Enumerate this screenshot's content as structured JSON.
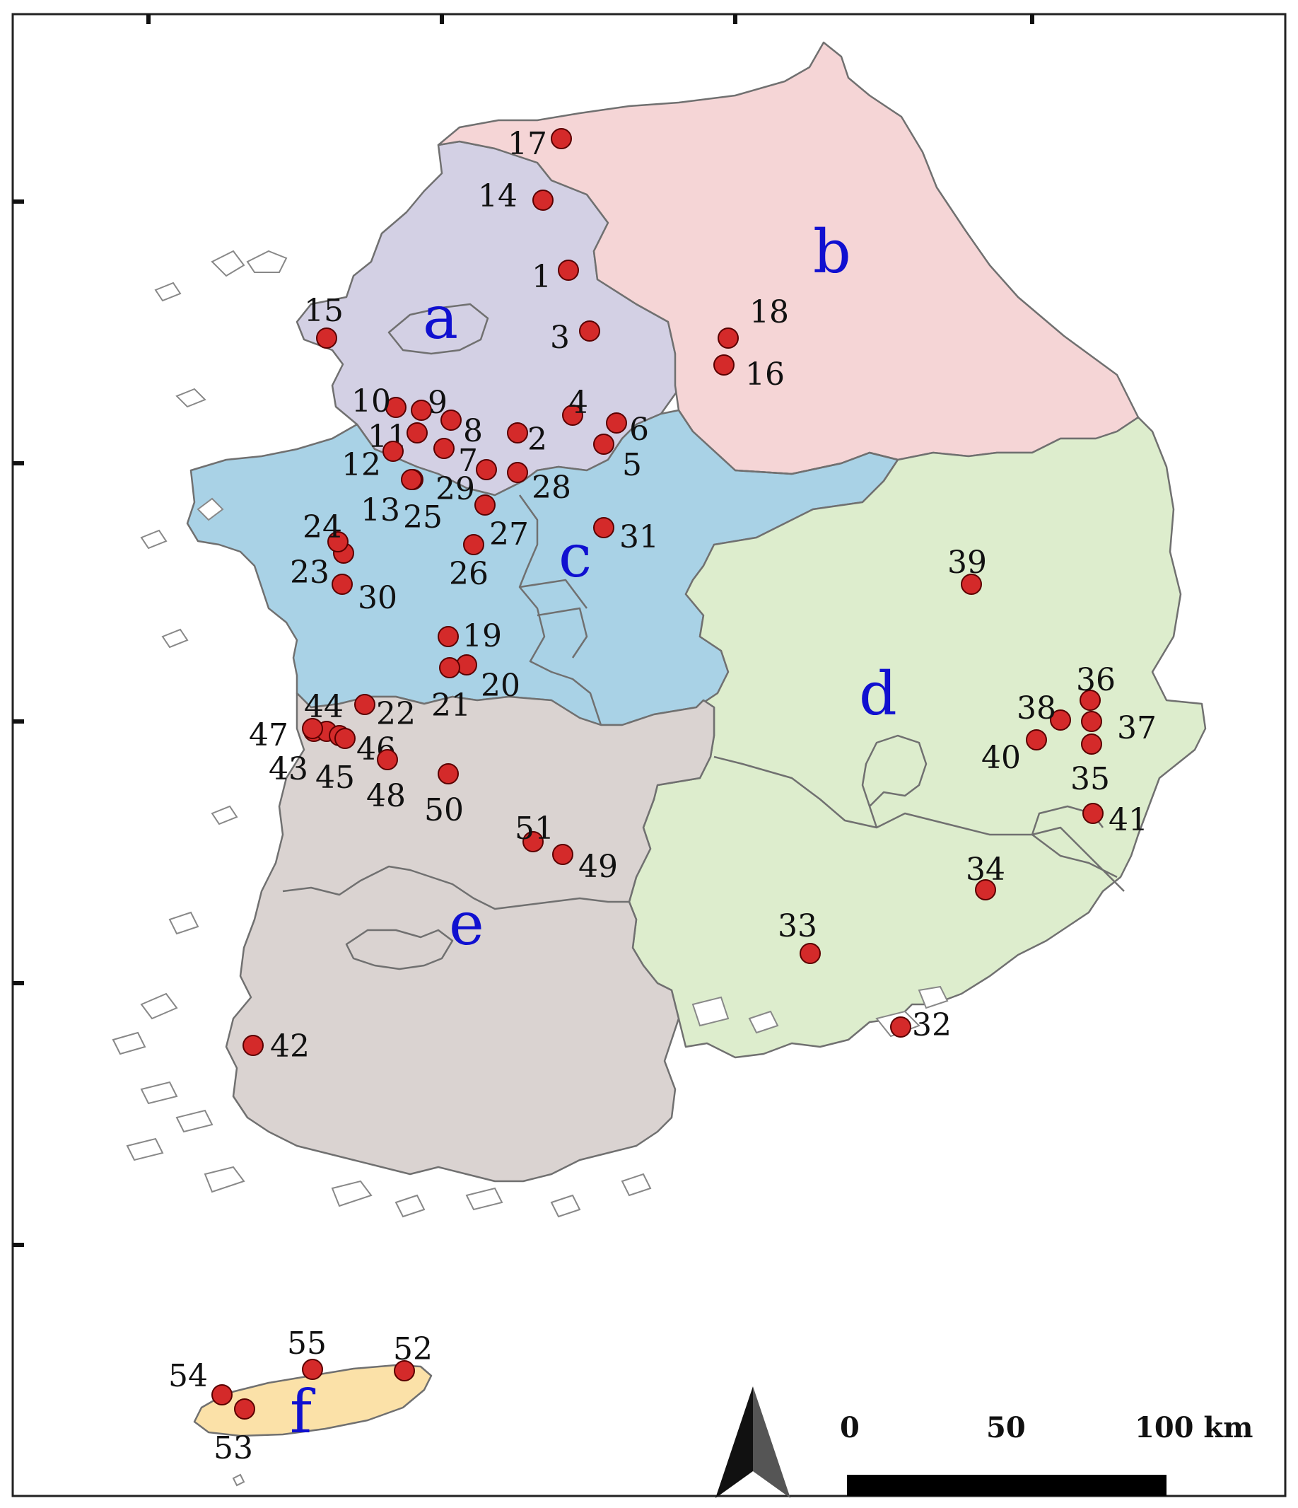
{
  "map": {
    "colors": {
      "a": "#d3d0e4",
      "b": "#f5d5d6",
      "c": "#a9d2e6",
      "d": "#ddedcd",
      "e": "#dad3d1",
      "f": "#fbe1a8",
      "site_marker": "#d42a2a",
      "region_label": "#1010d0",
      "boundary": "#707070"
    },
    "regions": [
      {
        "id": "a",
        "label": "a"
      },
      {
        "id": "b",
        "label": "b"
      },
      {
        "id": "c",
        "label": "c"
      },
      {
        "id": "d",
        "label": "d"
      },
      {
        "id": "e",
        "label": "e"
      },
      {
        "id": "f",
        "label": "f"
      }
    ],
    "sites": [
      "1",
      "2",
      "3",
      "4",
      "5",
      "6",
      "7",
      "8",
      "9",
      "10",
      "11",
      "12",
      "13",
      "14",
      "15",
      "16",
      "17",
      "18",
      "19",
      "20",
      "21",
      "22",
      "23",
      "24",
      "25",
      "26",
      "27",
      "28",
      "29",
      "30",
      "31",
      "32",
      "33",
      "34",
      "35",
      "36",
      "37",
      "38",
      "39",
      "40",
      "41",
      "42",
      "43",
      "44",
      "45",
      "46",
      "47",
      "48",
      "49",
      "50",
      "51",
      "52",
      "53",
      "54",
      "55"
    ],
    "scale_bar": {
      "labels": [
        "0",
        "50",
        "100 km"
      ]
    },
    "north_arrow_icon": "north-arrow-icon"
  }
}
